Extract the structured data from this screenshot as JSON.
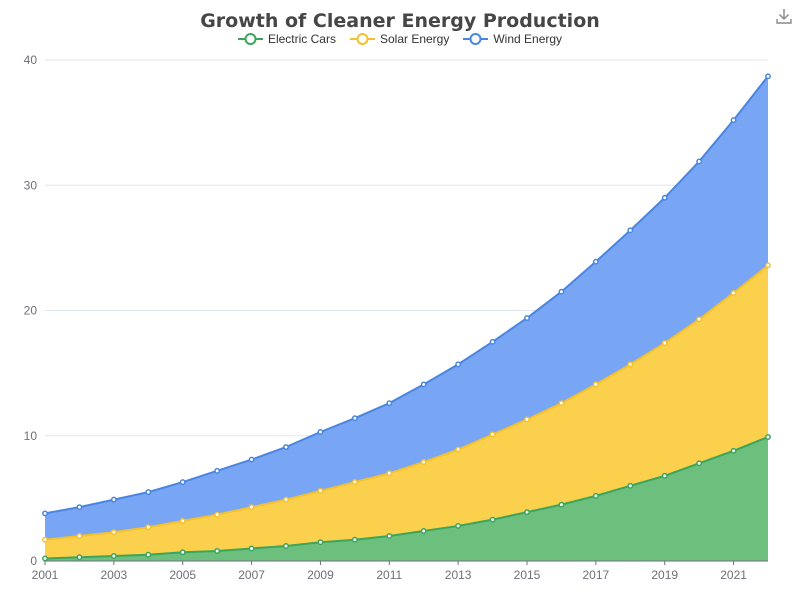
{
  "chart_data": {
    "type": "area",
    "stacked": true,
    "title": "Growth of Cleaner Energy Production",
    "xlabel": "",
    "ylabel": "",
    "ylim": [
      0,
      40
    ],
    "yticks": [
      0,
      10,
      20,
      30,
      40
    ],
    "x": [
      2001,
      2002,
      2003,
      2004,
      2005,
      2006,
      2007,
      2008,
      2009,
      2010,
      2011,
      2012,
      2013,
      2014,
      2015,
      2016,
      2017,
      2018,
      2019,
      2020,
      2021,
      2022
    ],
    "xtick_labels": [
      "2001",
      "2003",
      "2005",
      "2007",
      "2009",
      "2011",
      "2013",
      "2015",
      "2017",
      "2019",
      "2021"
    ],
    "grid": true,
    "legend_position": "top-center",
    "series": [
      {
        "name": "Electric Cars",
        "color": "#3ba55c",
        "fill": "#6dbf7e",
        "values": [
          0.2,
          0.3,
          0.4,
          0.5,
          0.7,
          0.8,
          1.0,
          1.2,
          1.5,
          1.7,
          2.0,
          2.4,
          2.8,
          3.3,
          3.9,
          4.5,
          5.2,
          6.0,
          6.8,
          7.8,
          8.8,
          9.9
        ]
      },
      {
        "name": "Solar Energy",
        "color": "#f5c02e",
        "fill": "#fad04d",
        "values": [
          1.5,
          1.7,
          1.9,
          2.2,
          2.5,
          2.9,
          3.3,
          3.7,
          4.1,
          4.6,
          5.0,
          5.5,
          6.1,
          6.8,
          7.4,
          8.1,
          8.9,
          9.7,
          10.6,
          11.5,
          12.6,
          13.7
        ]
      },
      {
        "name": "Wind Energy",
        "color": "#4a86e0",
        "fill": "#78a6f5",
        "values": [
          2.1,
          2.3,
          2.6,
          2.8,
          3.1,
          3.5,
          3.8,
          4.2,
          4.7,
          5.1,
          5.6,
          6.2,
          6.8,
          7.4,
          8.1,
          8.9,
          9.8,
          10.7,
          11.6,
          12.6,
          13.8,
          15.1
        ]
      }
    ]
  },
  "toolbar": {
    "download_icon": "download-icon"
  }
}
